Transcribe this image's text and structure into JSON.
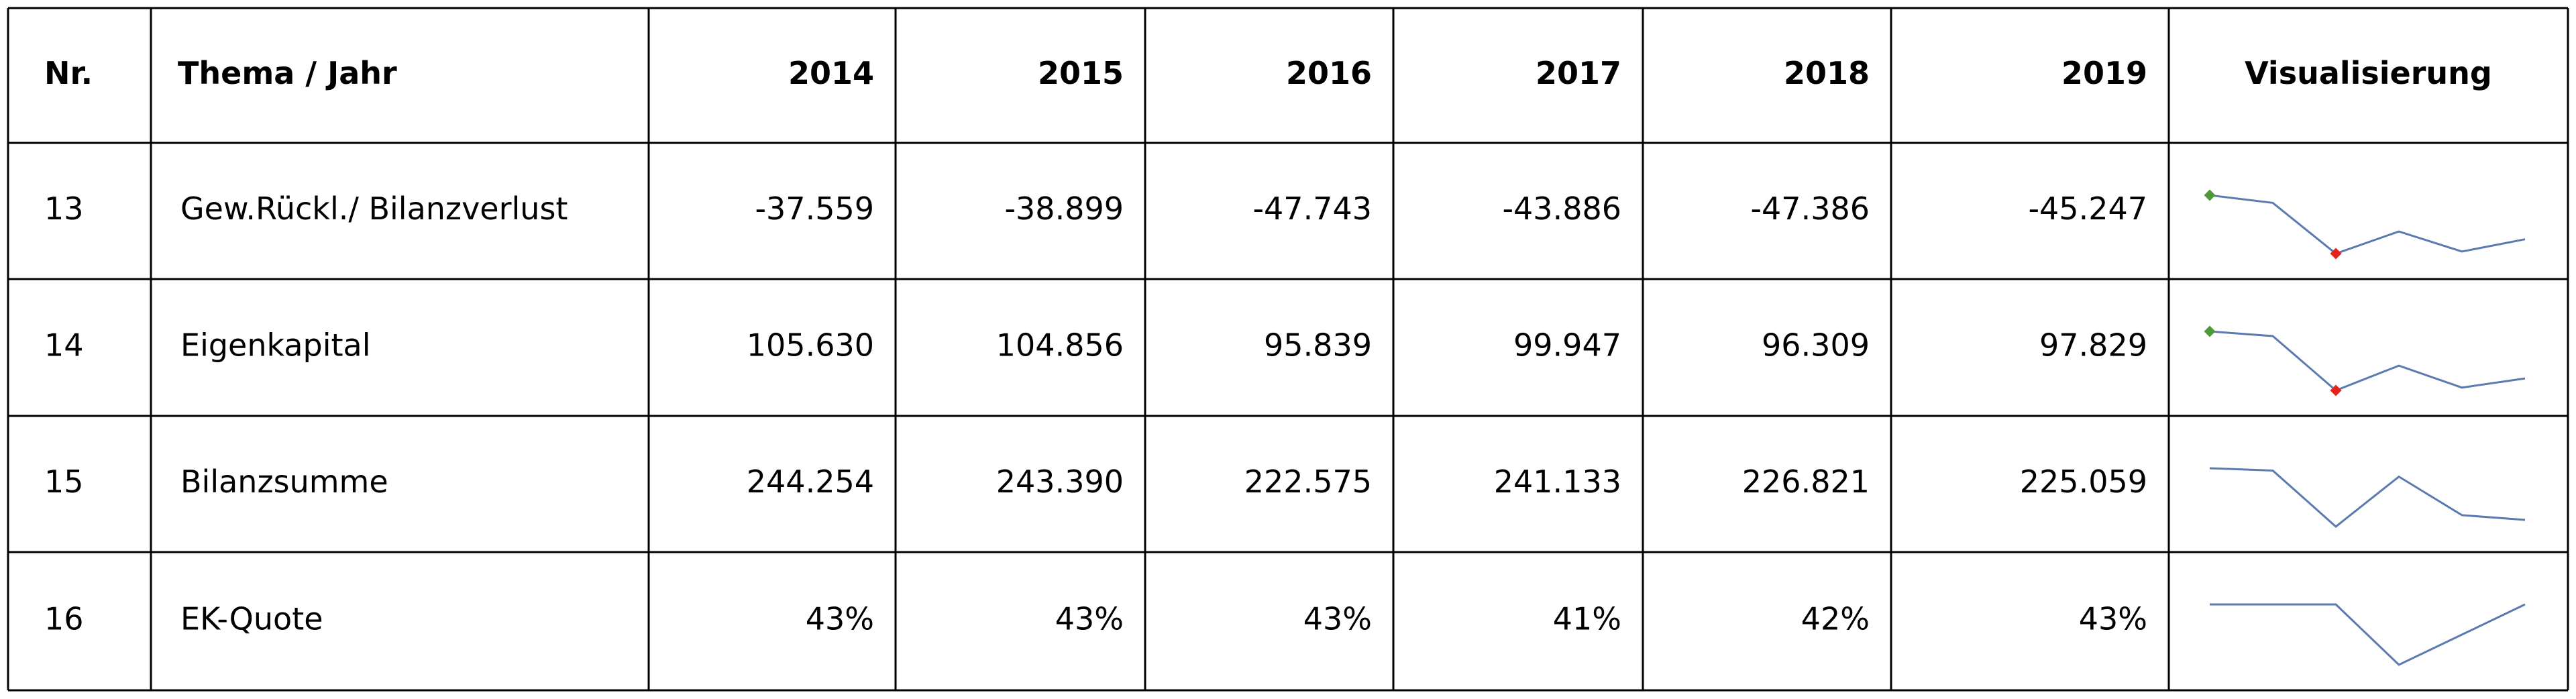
{
  "table": {
    "header": [
      "Nr.",
      "Thema  /  Jahr",
      "2014",
      "2015",
      "2016",
      "2017",
      "2018",
      "2019",
      "Visualisierung"
    ],
    "rows": [
      {
        "nr": "13",
        "label": "Gew.Rückl./ Bilanzverlust",
        "values": [
          -37559,
          -38899,
          -47743,
          -43886,
          -47386,
          -45247
        ],
        "value_labels": [
          "-37.559",
          "-38.899",
          "-47.743",
          "-43.886",
          "-47.386",
          "-45.247"
        ],
        "line_color": "#5b7bb0",
        "high_color": "#4e9a3a",
        "low_color": "#e8221b"
      },
      {
        "nr": "14",
        "label": "Eigenkapital",
        "values": [
          105630,
          104856,
          95839,
          99947,
          96309,
          97829
        ],
        "value_labels": [
          "105.630",
          "104.856",
          "95.839",
          "99.947",
          "96.309",
          "97.829"
        ],
        "line_color": "#5b7bb0",
        "high_color": "#4e9a3a",
        "low_color": "#e8221b"
      },
      {
        "nr": "15",
        "label": "Bilanzsumme",
        "values": [
          244254,
          243390,
          222575,
          241133,
          226821,
          225059
        ],
        "value_labels": [
          "244.254",
          "243.390",
          "222.575",
          "241.133",
          "226.821",
          "225.059"
        ],
        "line_color": "#5b7bb0"
      },
      {
        "nr": "16",
        "label": "EK-Quote",
        "values": [
          43,
          43,
          43,
          41,
          42,
          43
        ],
        "value_labels": [
          "43%",
          "43%",
          "43%",
          "41%",
          "42%",
          "43%"
        ],
        "line_color": "#5b7bb0"
      }
    ]
  }
}
